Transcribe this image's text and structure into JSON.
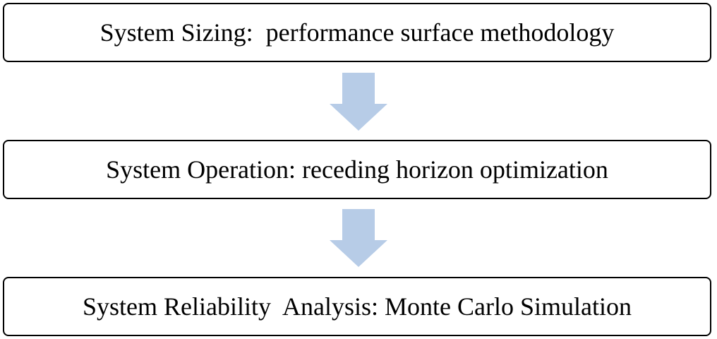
{
  "colors": {
    "arrow": "#B7CCE7",
    "box_border": "#000000",
    "text": "#000000"
  },
  "steps": [
    {
      "label": "System Sizing:  performance surface methodology"
    },
    {
      "label": "System Operation: receding horizon optimization"
    },
    {
      "label": "System Reliability  Analysis: Monte Carlo Simulation"
    }
  ],
  "arrows": [
    {
      "icon": "down-arrow-icon"
    },
    {
      "icon": "down-arrow-icon"
    }
  ]
}
